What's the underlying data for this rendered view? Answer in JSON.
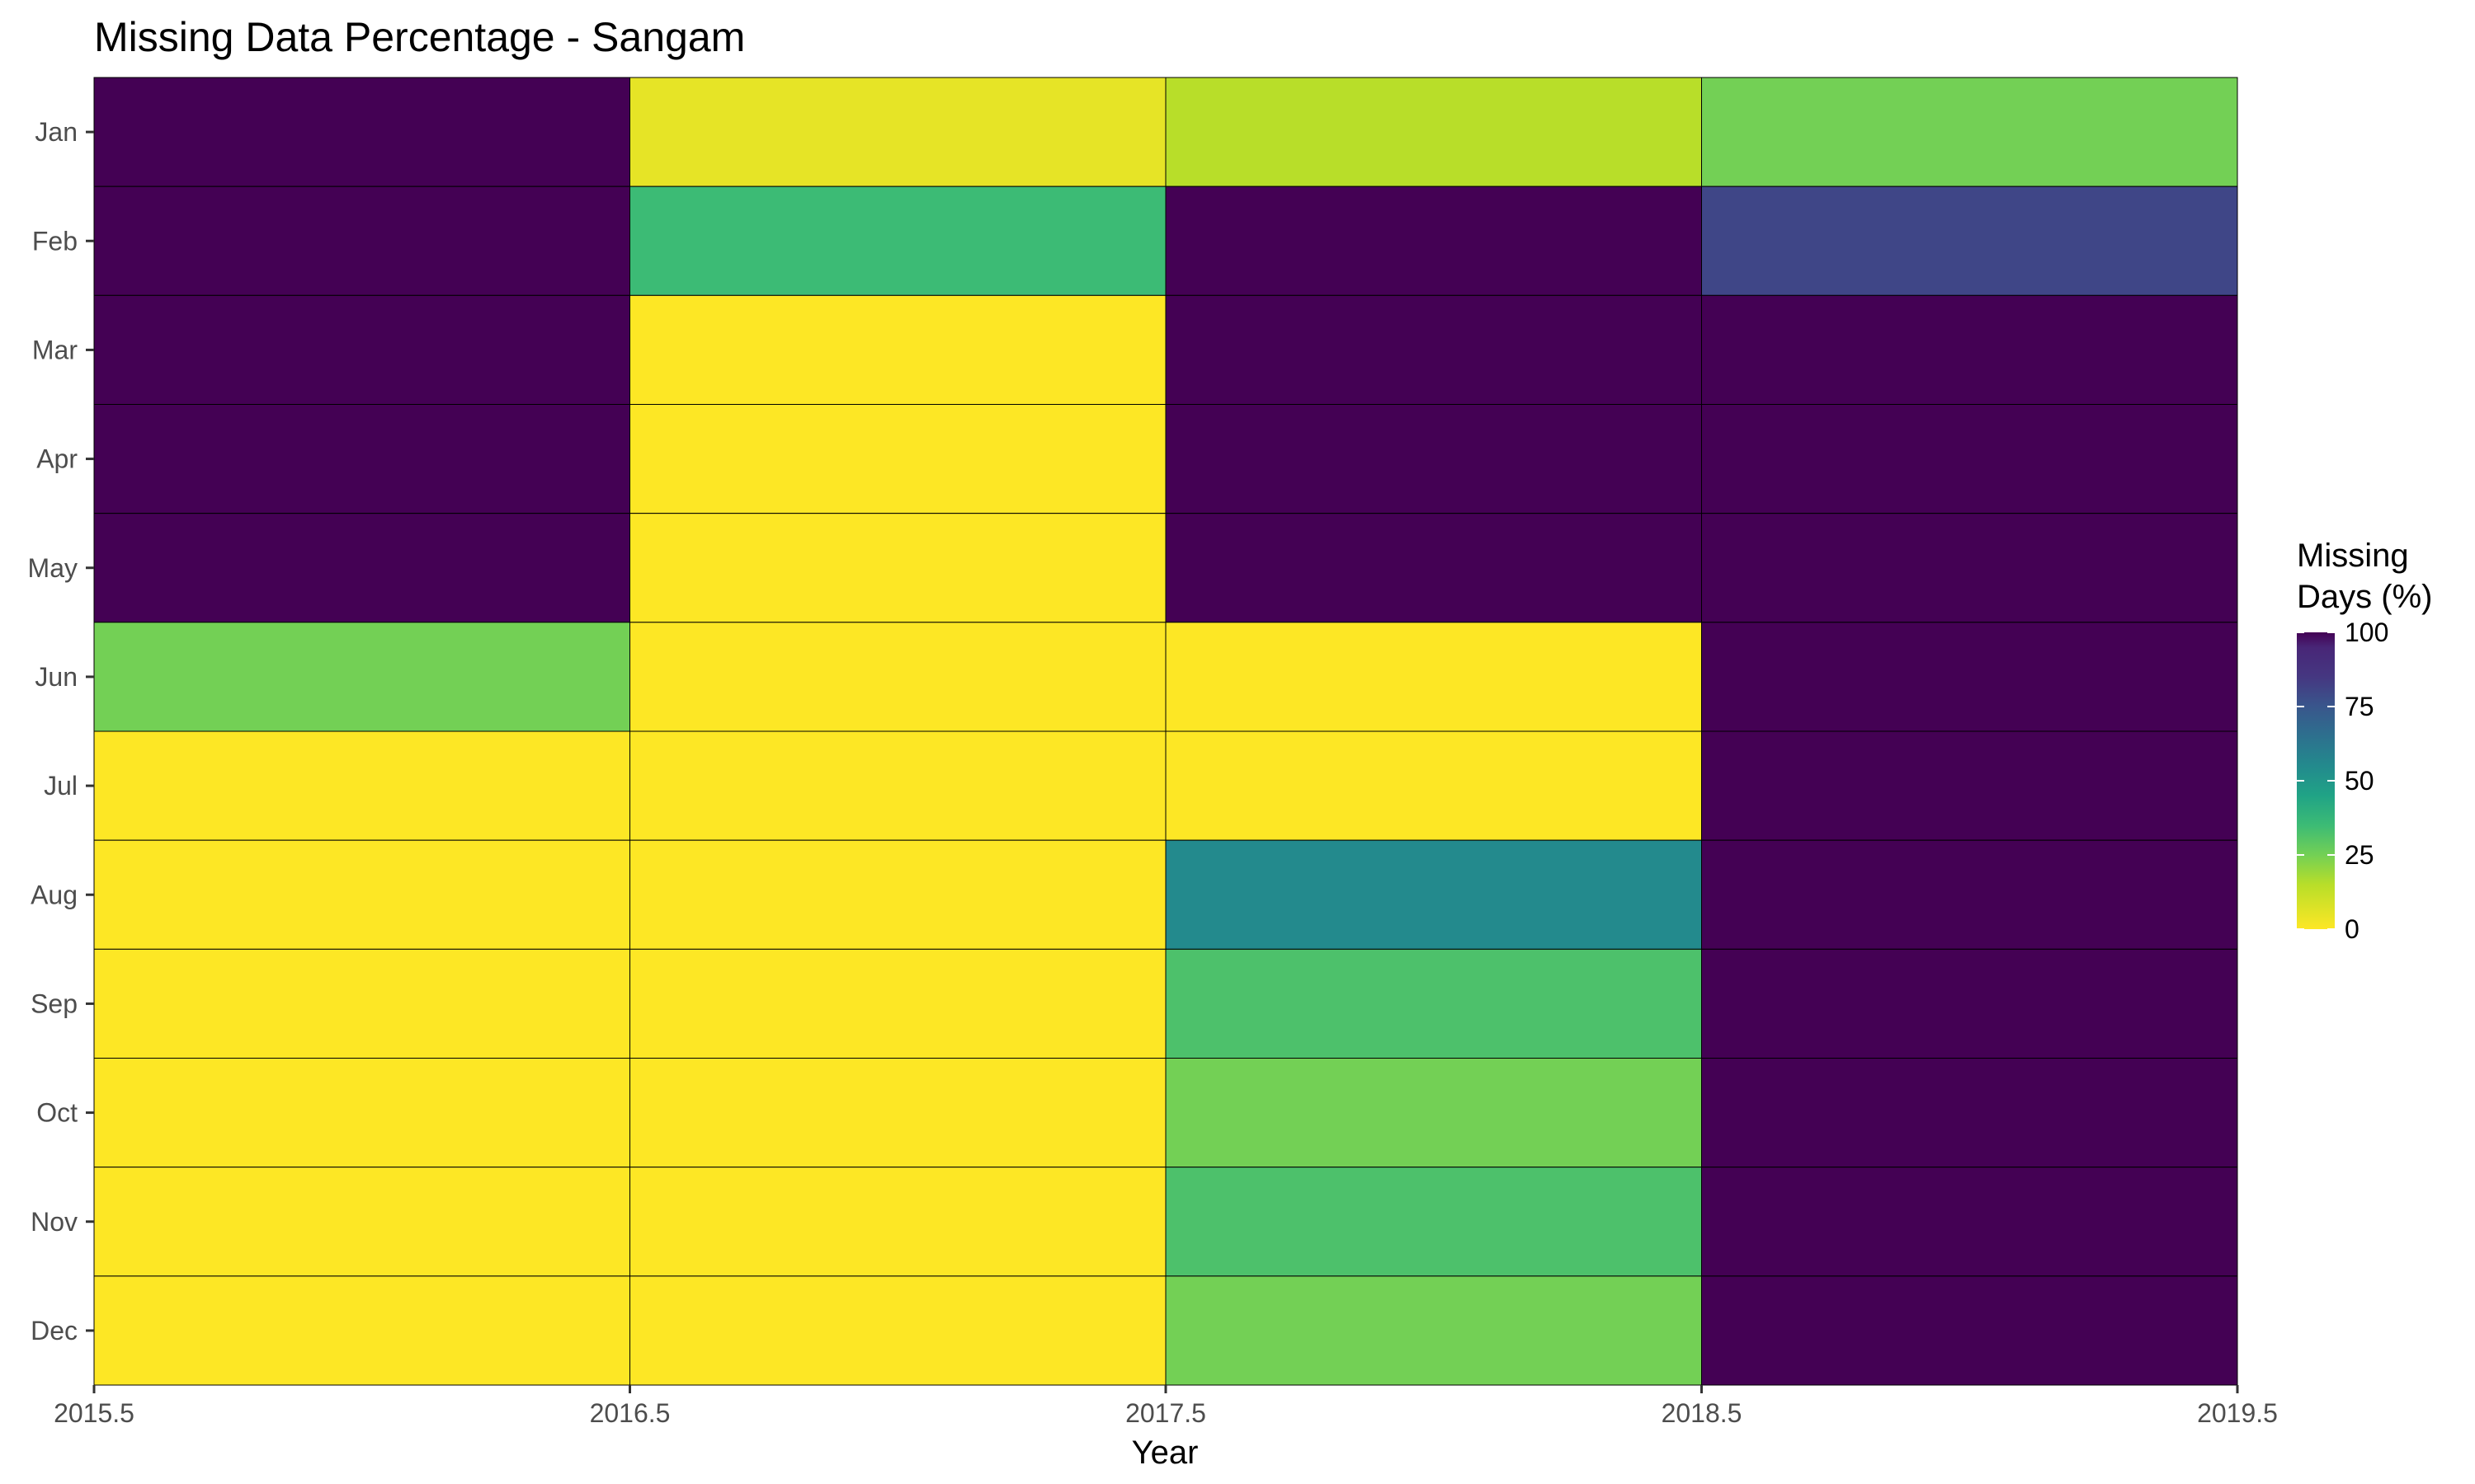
{
  "chart_data": {
    "type": "heatmap",
    "title": "Missing Data Percentage - Sangam",
    "xlabel": "Year",
    "ylabel": "",
    "x_ticks": [
      "2015.5",
      "2016.5",
      "2017.5",
      "2018.5",
      "2019.5"
    ],
    "xlim": [
      2015.5,
      2019.5
    ],
    "x": [
      2016,
      2017,
      2018,
      2019
    ],
    "y": [
      "Jan",
      "Feb",
      "Mar",
      "Apr",
      "May",
      "Jun",
      "Jul",
      "Aug",
      "Sep",
      "Oct",
      "Nov",
      "Dec"
    ],
    "values": [
      [
        100,
        5,
        15,
        25
      ],
      [
        100,
        35,
        100,
        80
      ],
      [
        100,
        0,
        100,
        100
      ],
      [
        100,
        0,
        100,
        100
      ],
      [
        100,
        0,
        100,
        100
      ],
      [
        25,
        0,
        0,
        100
      ],
      [
        0,
        0,
        0,
        100
      ],
      [
        0,
        0,
        55,
        100
      ],
      [
        0,
        0,
        32,
        100
      ],
      [
        0,
        0,
        25,
        100
      ],
      [
        0,
        0,
        32,
        100
      ],
      [
        0,
        0,
        25,
        100
      ]
    ],
    "colorscale": "viridis (reversed)",
    "color_range": [
      0,
      100
    ],
    "legend": {
      "title_lines": [
        "Missing",
        "Days (%)"
      ],
      "ticks": [
        "0",
        "25",
        "50",
        "75",
        "100"
      ],
      "placement": "right"
    },
    "grid": false
  }
}
